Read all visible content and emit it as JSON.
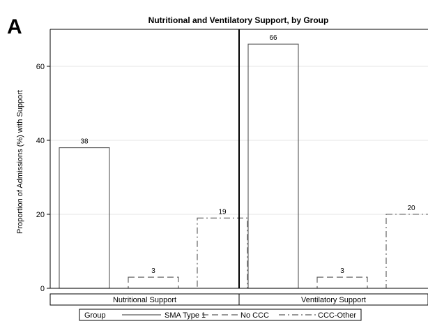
{
  "panel_label": "A",
  "chart_data": {
    "type": "bar",
    "title": "Nutritional and Ventilatory Support, by Group",
    "ylabel": "Proportion of Admissions (%) with Support",
    "xlabel": "",
    "ylim": [
      0,
      70
    ],
    "yticks": [
      0,
      20,
      40,
      60
    ],
    "grid": true,
    "categories": [
      "Nutritional Support",
      "Ventilatory Support"
    ],
    "series": [
      {
        "name": "SMA Type 1",
        "values": [
          38,
          66
        ],
        "line_style": "solid"
      },
      {
        "name": "No CCC",
        "values": [
          3,
          3
        ],
        "line_style": "dashed"
      },
      {
        "name": "CCC-Other",
        "values": [
          19,
          20
        ],
        "line_style": "dash-dot"
      }
    ],
    "legend": {
      "title": "Group",
      "placement": "bottom"
    }
  }
}
